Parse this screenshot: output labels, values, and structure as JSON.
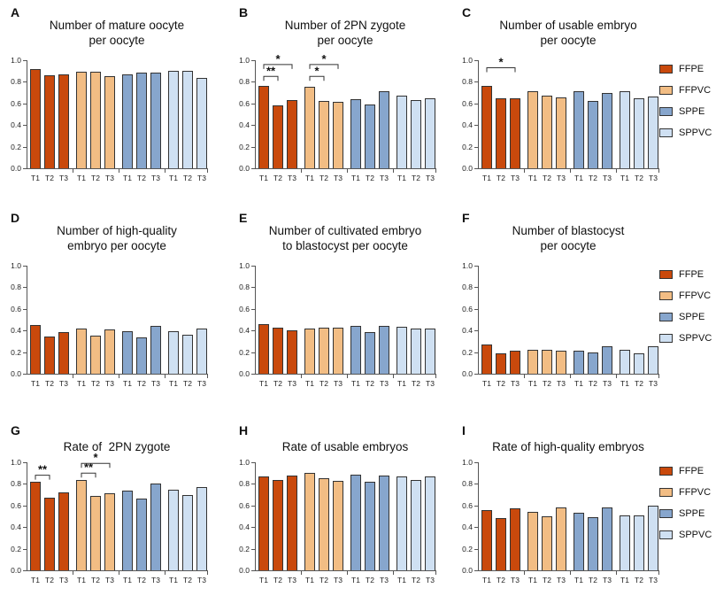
{
  "figure_title": "Oocyte and embryo outcome bar charts",
  "chart_data": {
    "type": "bar",
    "categories": [
      "T1",
      "T2",
      "T3"
    ],
    "groups": [
      "FFPE",
      "FFPVC",
      "SPPE",
      "SPPVC"
    ],
    "colors": {
      "FFPE": "#C9490C",
      "FFPVC": "#F2BD84",
      "SPPE": "#87A6CD",
      "SPPVC": "#CFE0F2"
    },
    "ylim": [
      0,
      1
    ],
    "yticks": [
      "0.0",
      "0.2",
      "0.4",
      "0.6",
      "0.8",
      "1.0"
    ],
    "legend_position": "right",
    "grid": false,
    "panels": [
      {
        "letter": "A",
        "title": "Number of mature oocyte\nper oocyte",
        "series": [
          {
            "name": "FFPE",
            "values": [
              0.92,
              0.86,
              0.865
            ]
          },
          {
            "name": "FFPVC",
            "values": [
              0.89,
              0.895,
              0.855
            ]
          },
          {
            "name": "SPPE",
            "values": [
              0.87,
              0.885,
              0.885
            ]
          },
          {
            "name": "SPPVC",
            "values": [
              0.905,
              0.905,
              0.84
            ]
          }
        ],
        "significance": [],
        "show_legend": false
      },
      {
        "letter": "B",
        "title": "Number of 2PN zygote\nper oocyte",
        "series": [
          {
            "name": "FFPE",
            "values": [
              0.76,
              0.58,
              0.63
            ]
          },
          {
            "name": "FFPVC",
            "values": [
              0.75,
              0.62,
              0.615
            ]
          },
          {
            "name": "SPPE",
            "values": [
              0.64,
              0.59,
              0.71
            ]
          },
          {
            "name": "SPPVC",
            "values": [
              0.67,
              0.63,
              0.645
            ]
          }
        ],
        "significance": [
          {
            "group": 0,
            "from": 0,
            "to": 1,
            "label": "**",
            "y": 0.85
          },
          {
            "group": 0,
            "from": 0,
            "to": 2,
            "label": "*",
            "y": 0.96
          },
          {
            "group": 1,
            "from": 0,
            "to": 1,
            "label": "*",
            "y": 0.85
          },
          {
            "group": 1,
            "from": 0,
            "to": 2,
            "label": "*",
            "y": 0.96
          }
        ],
        "show_legend": false
      },
      {
        "letter": "C",
        "title": "Number of usable embryo\nper oocyte",
        "series": [
          {
            "name": "FFPE",
            "values": [
              0.76,
              0.645,
              0.645
            ]
          },
          {
            "name": "FFPVC",
            "values": [
              0.71,
              0.675,
              0.655
            ]
          },
          {
            "name": "SPPE",
            "values": [
              0.71,
              0.625,
              0.7
            ]
          },
          {
            "name": "SPPVC",
            "values": [
              0.71,
              0.65,
              0.665
            ]
          }
        ],
        "significance": [
          {
            "group": 0,
            "from": 0,
            "to": 2,
            "label": "*",
            "y": 0.93
          }
        ],
        "show_legend": true
      },
      {
        "letter": "D",
        "title": "Number of high-quality\nembryo per oocyte",
        "series": [
          {
            "name": "FFPE",
            "values": [
              0.45,
              0.345,
              0.385
            ]
          },
          {
            "name": "FFPVC",
            "values": [
              0.42,
              0.355,
              0.41
            ]
          },
          {
            "name": "SPPE",
            "values": [
              0.39,
              0.335,
              0.44
            ]
          },
          {
            "name": "SPPVC",
            "values": [
              0.39,
              0.36,
              0.42
            ]
          }
        ],
        "significance": [],
        "show_legend": false
      },
      {
        "letter": "E",
        "title": "Number of cultivated embryo\nto blastocyst per oocyte",
        "series": [
          {
            "name": "FFPE",
            "values": [
              0.455,
              0.425,
              0.4
            ]
          },
          {
            "name": "FFPVC",
            "values": [
              0.415,
              0.425,
              0.43
            ]
          },
          {
            "name": "SPPE",
            "values": [
              0.445,
              0.385,
              0.44
            ]
          },
          {
            "name": "SPPVC",
            "values": [
              0.435,
              0.415,
              0.42
            ]
          }
        ],
        "significance": [],
        "show_legend": false
      },
      {
        "letter": "F",
        "title": "Number of blastocyst\nper oocyte",
        "series": [
          {
            "name": "FFPE",
            "values": [
              0.27,
              0.19,
              0.215
            ]
          },
          {
            "name": "FFPVC",
            "values": [
              0.225,
              0.225,
              0.21
            ]
          },
          {
            "name": "SPPE",
            "values": [
              0.21,
              0.195,
              0.255
            ]
          },
          {
            "name": "SPPVC",
            "values": [
              0.22,
              0.19,
              0.25
            ]
          }
        ],
        "significance": [],
        "show_legend": true
      },
      {
        "letter": "G",
        "title": "Rate of  2PN zygote",
        "series": [
          {
            "name": "FFPE",
            "values": [
              0.82,
              0.675,
              0.725
            ]
          },
          {
            "name": "FFPVC",
            "values": [
              0.835,
              0.69,
              0.715
            ]
          },
          {
            "name": "SPPE",
            "values": [
              0.74,
              0.665,
              0.8
            ]
          },
          {
            "name": "SPPVC",
            "values": [
              0.745,
              0.695,
              0.77
            ]
          }
        ],
        "significance": [
          {
            "group": 0,
            "from": 0,
            "to": 1,
            "label": "**",
            "y": 0.88
          },
          {
            "group": 1,
            "from": 0,
            "to": 1,
            "label": "**",
            "y": 0.9
          },
          {
            "group": 1,
            "from": 0,
            "to": 2,
            "label": "*",
            "y": 0.99
          }
        ],
        "show_legend": false
      },
      {
        "letter": "H",
        "title": "Rate of usable embryos",
        "series": [
          {
            "name": "FFPE",
            "values": [
              0.87,
              0.835,
              0.88
            ]
          },
          {
            "name": "FFPVC",
            "values": [
              0.905,
              0.855,
              0.83
            ]
          },
          {
            "name": "SPPE",
            "values": [
              0.885,
              0.82,
              0.875
            ]
          },
          {
            "name": "SPPVC",
            "values": [
              0.87,
              0.84,
              0.865
            ]
          }
        ],
        "significance": [],
        "show_legend": false
      },
      {
        "letter": "I",
        "title": "Rate of high-quality embryos",
        "series": [
          {
            "name": "FFPE",
            "values": [
              0.555,
              0.485,
              0.575
            ]
          },
          {
            "name": "FFPVC",
            "values": [
              0.545,
              0.5,
              0.585
            ]
          },
          {
            "name": "SPPE",
            "values": [
              0.53,
              0.49,
              0.585
            ]
          },
          {
            "name": "SPPVC",
            "values": [
              0.51,
              0.505,
              0.6
            ]
          }
        ],
        "significance": [],
        "show_legend": true
      }
    ]
  }
}
